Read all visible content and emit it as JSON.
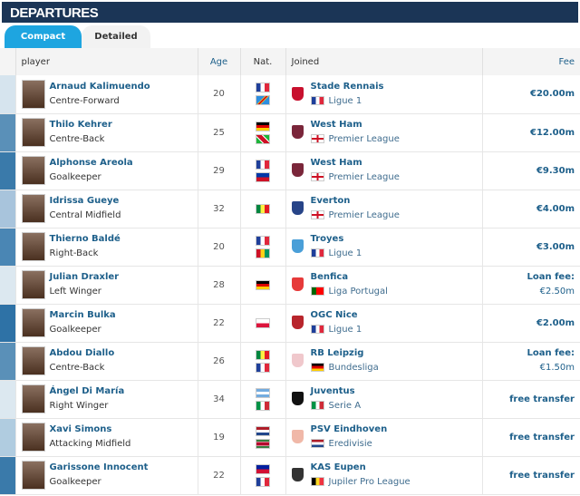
{
  "title": "DEPARTURES",
  "tabs": [
    {
      "label": "Compact",
      "active": true
    },
    {
      "label": "Detailed",
      "active": false
    }
  ],
  "columns": {
    "player": "player",
    "age": "Age",
    "nat": "Nat.",
    "joined": "Joined",
    "fee": "Fee"
  },
  "flags": {
    "france": "linear-gradient(90deg,#1f3f9a 33%,#fff 33% 66%,#e0283c 66%)",
    "drcongo": "linear-gradient(135deg,#2d8fe0 40%,#f7d618 40% 45%,#ce1021 45% 55%,#f7d618 55% 60%,#2d8fe0 60%)",
    "germany": "linear-gradient(#000 33%,#dd0000 33% 66%,#ffce00 66%)",
    "burundi": "linear-gradient(45deg,#1eb53a 30%,#fff 30% 35%,#ce1126 35% 65%,#fff 65% 70%,#1eb53a 70%)",
    "philippines": "linear-gradient(#0038a8 50%,#ce1126 50%)",
    "senegal": "linear-gradient(90deg,#00853f 33%,#fdef42 33% 66%,#e31b23 66%)",
    "guinea": "linear-gradient(90deg,#ce1126 33%,#fcd116 33% 66%,#009460 66%)",
    "poland": "linear-gradient(#fff 50%,#dc143c 50%)",
    "argentina": "linear-gradient(#74acdf 33%,#fff 33% 66%,#74acdf 66%)",
    "italy": "linear-gradient(90deg,#009246 33%,#fff 33% 66%,#ce2b37 66%)",
    "netherlands": "linear-gradient(#ae1c28 33%,#fff 33% 66%,#21468b 66%)",
    "suriname": "linear-gradient(#377e3f 20%,#fff 20% 27%,#b40a2d 27% 73%,#fff 73% 80%,#377e3f 80%)",
    "haiti": "linear-gradient(#00209f 50%,#d21034 50%)",
    "england": "linear-gradient(90deg,transparent 42%,#ce1124 42% 58%,transparent 58%),linear-gradient(#fff 40%,#ce1124 40% 60%,#fff 60%)",
    "portugal": "linear-gradient(90deg,#006600 40%,#ff0000 40%)",
    "belgium": "linear-gradient(90deg,#000 33%,#fdda24 33% 66%,#ef3340 66%)"
  },
  "rows": [
    {
      "name": "Arnaud Kalimuendo",
      "position": "Centre-Forward",
      "age": "20",
      "nat": [
        "france",
        "drcongo"
      ],
      "club": "Stade Rennais",
      "league": "Ligue 1",
      "league_flag": "france",
      "fee": "€20.00m",
      "strip": "#d6e4ee",
      "logo": "#c8102e"
    },
    {
      "name": "Thilo Kehrer",
      "position": "Centre-Back",
      "age": "25",
      "nat": [
        "germany",
        "burundi"
      ],
      "club": "West Ham",
      "league": "Premier League",
      "league_flag": "england",
      "fee": "€12.00m",
      "strip": "#5a90b8",
      "logo": "#7a263a"
    },
    {
      "name": "Alphonse Areola",
      "position": "Goalkeeper",
      "age": "29",
      "nat": [
        "france",
        "philippines"
      ],
      "club": "West Ham",
      "league": "Premier League",
      "league_flag": "england",
      "fee": "€9.30m",
      "strip": "#3a7aaa",
      "logo": "#7a263a"
    },
    {
      "name": "Idrissa Gueye",
      "position": "Central Midfield",
      "age": "32",
      "nat": [
        "senegal"
      ],
      "club": "Everton",
      "league": "Premier League",
      "league_flag": "england",
      "fee": "€4.00m",
      "strip": "#a8c4dc",
      "logo": "#274488"
    },
    {
      "name": "Thierno Baldé",
      "position": "Right-Back",
      "age": "20",
      "nat": [
        "france",
        "guinea"
      ],
      "club": "Troyes",
      "league": "Ligue 1",
      "league_flag": "france",
      "fee": "€3.00m",
      "strip": "#4a86b4",
      "logo": "#4a9fd8"
    },
    {
      "name": "Julian Draxler",
      "position": "Left Winger",
      "age": "28",
      "nat": [
        "germany"
      ],
      "club": "Benfica",
      "league": "Liga Portugal",
      "league_flag": "portugal",
      "fee_label": "Loan fee:",
      "fee": "€2.50m",
      "strip": "#dce8f0",
      "logo": "#e63a3a"
    },
    {
      "name": "Marcin Bulka",
      "position": "Goalkeeper",
      "age": "22",
      "nat": [
        "poland"
      ],
      "club": "OGC Nice",
      "league": "Ligue 1",
      "league_flag": "france",
      "fee": "€2.00m",
      "strip": "#2e72a6",
      "logo": "#b8252c"
    },
    {
      "name": "Abdou Diallo",
      "position": "Centre-Back",
      "age": "26",
      "nat": [
        "senegal",
        "france"
      ],
      "club": "RB Leipzig",
      "league": "Bundesliga",
      "league_flag": "germany",
      "fee_label": "Loan fee:",
      "fee": "€1.50m",
      "strip": "#5a90b8",
      "logo": "#f0c8cc"
    },
    {
      "name": "Ángel Di María",
      "position": "Right Winger",
      "age": "34",
      "nat": [
        "argentina",
        "italy"
      ],
      "club": "Juventus",
      "league": "Serie A",
      "league_flag": "italy",
      "fee": "free transfer",
      "strip": "#dce8f0",
      "logo": "#111111"
    },
    {
      "name": "Xavi Simons",
      "position": "Attacking Midfield",
      "age": "19",
      "nat": [
        "netherlands",
        "suriname"
      ],
      "club": "PSV Eindhoven",
      "league": "Eredivisie",
      "league_flag": "netherlands",
      "fee": "free transfer",
      "strip": "#b0cce0",
      "logo": "#f0b8a8"
    },
    {
      "name": "Garissone Innocent",
      "position": "Goalkeeper",
      "age": "22",
      "nat": [
        "haiti",
        "france"
      ],
      "club": "KAS Eupen",
      "league": "Jupiler Pro League",
      "league_flag": "belgium",
      "fee": "free transfer",
      "strip": "#3a7aaa",
      "logo": "#333333"
    }
  ]
}
